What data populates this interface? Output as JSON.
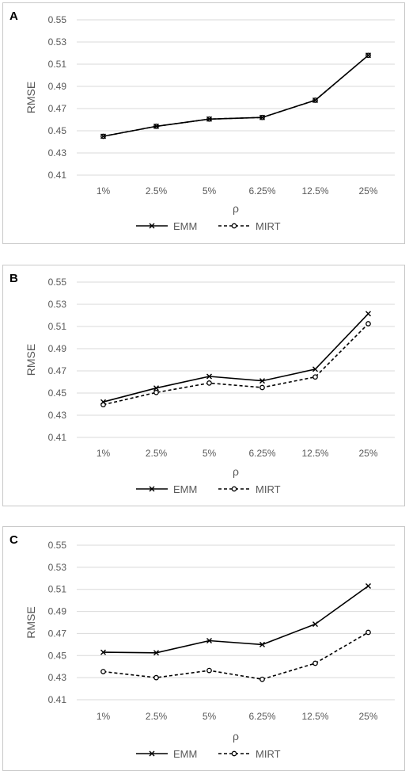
{
  "chart_data": [
    {
      "type": "line",
      "panel_label": "A",
      "categories": [
        "1%",
        "2.5%",
        "5%",
        "6.25%",
        "12.5%",
        "25%"
      ],
      "xlabel": "ρ",
      "ylabel": "RMSE",
      "ylim": [
        0.41,
        0.55
      ],
      "yticks": [
        "0.41",
        "0.43",
        "0.45",
        "0.47",
        "0.49",
        "0.51",
        "0.53",
        "0.55"
      ],
      "grid": true,
      "legend": "bottom",
      "series": [
        {
          "name": "EMM",
          "values": [
            0.445,
            0.454,
            0.4605,
            0.462,
            0.4775,
            0.518
          ],
          "style": "solid",
          "marker": "x",
          "color": "#000000"
        },
        {
          "name": "MIRT",
          "values": [
            0.445,
            0.454,
            0.4605,
            0.462,
            0.4775,
            0.518
          ],
          "style": "dashed",
          "marker": "o",
          "color": "#000000"
        }
      ]
    },
    {
      "type": "line",
      "panel_label": "B",
      "categories": [
        "1%",
        "2.5%",
        "5%",
        "6.25%",
        "12.5%",
        "25%"
      ],
      "xlabel": "ρ",
      "ylabel": "RMSE",
      "ylim": [
        0.41,
        0.55
      ],
      "yticks": [
        "0.41",
        "0.43",
        "0.45",
        "0.47",
        "0.49",
        "0.51",
        "0.53",
        "0.55"
      ],
      "grid": true,
      "legend": "bottom",
      "series": [
        {
          "name": "EMM",
          "values": [
            0.442,
            0.4545,
            0.465,
            0.461,
            0.4715,
            0.5215
          ],
          "style": "solid",
          "marker": "x",
          "color": "#000000"
        },
        {
          "name": "MIRT",
          "values": [
            0.4395,
            0.4505,
            0.459,
            0.455,
            0.4645,
            0.5125
          ],
          "style": "dashed",
          "marker": "o",
          "color": "#000000"
        }
      ]
    },
    {
      "type": "line",
      "panel_label": "C",
      "categories": [
        "1%",
        "2.5%",
        "5%",
        "6.25%",
        "12.5%",
        "25%"
      ],
      "xlabel": "ρ",
      "ylabel": "RMSE",
      "ylim": [
        0.41,
        0.55
      ],
      "yticks": [
        "0.41",
        "0.43",
        "0.45",
        "0.47",
        "0.49",
        "0.51",
        "0.53",
        "0.55"
      ],
      "grid": true,
      "legend": "bottom",
      "series": [
        {
          "name": "EMM",
          "values": [
            0.453,
            0.4525,
            0.4635,
            0.46,
            0.4785,
            0.513
          ],
          "style": "solid",
          "marker": "x",
          "color": "#000000"
        },
        {
          "name": "MIRT",
          "values": [
            0.4355,
            0.43,
            0.4365,
            0.4285,
            0.443,
            0.471
          ],
          "style": "dashed",
          "marker": "o",
          "color": "#000000"
        }
      ]
    }
  ],
  "colors": {
    "gridline": "#d9d9d9",
    "text": "#595959",
    "border": "#c9c9c9",
    "series": "#000000"
  }
}
